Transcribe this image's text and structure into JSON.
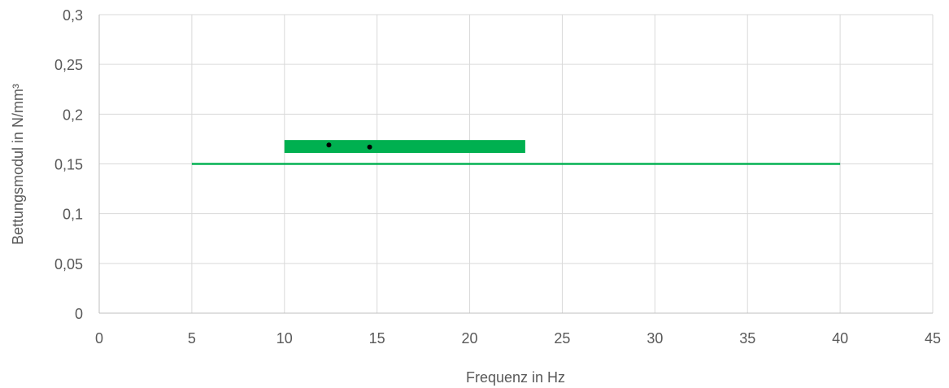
{
  "chart_data": {
    "type": "scatter",
    "title": "",
    "xlabel": "Frequenz in Hz",
    "ylabel": "Bettungsmodul in N/mm³",
    "xlim": [
      0,
      45
    ],
    "ylim": [
      0,
      0.3
    ],
    "x_ticks": [
      {
        "value": 0,
        "label": "0"
      },
      {
        "value": 5,
        "label": "5"
      },
      {
        "value": 10,
        "label": "10"
      },
      {
        "value": 15,
        "label": "15"
      },
      {
        "value": 20,
        "label": "20"
      },
      {
        "value": 25,
        "label": "25"
      },
      {
        "value": 30,
        "label": "30"
      },
      {
        "value": 35,
        "label": "35"
      },
      {
        "value": 40,
        "label": "40"
      },
      {
        "value": 45,
        "label": "45"
      }
    ],
    "y_ticks": [
      {
        "value": 0,
        "label": "0"
      },
      {
        "value": 0.05,
        "label": "0,05"
      },
      {
        "value": 0.1,
        "label": "0,1"
      },
      {
        "value": 0.15,
        "label": "0,15"
      },
      {
        "value": 0.2,
        "label": "0,2"
      },
      {
        "value": 0.25,
        "label": "0,25"
      },
      {
        "value": 0.3,
        "label": "0,3"
      }
    ],
    "grid": true,
    "legend": "none",
    "series": [
      {
        "kind": "range-band",
        "x": [
          5,
          40
        ],
        "y": [
          0.149,
          0.151
        ],
        "color": "#00b050"
      },
      {
        "kind": "range-band",
        "x": [
          10,
          23
        ],
        "y": [
          0.161,
          0.174
        ],
        "color": "#00b050"
      },
      {
        "kind": "points",
        "x": [
          12.4,
          14.6
        ],
        "y": [
          0.169,
          0.167
        ],
        "color": "#000000"
      }
    ]
  }
}
